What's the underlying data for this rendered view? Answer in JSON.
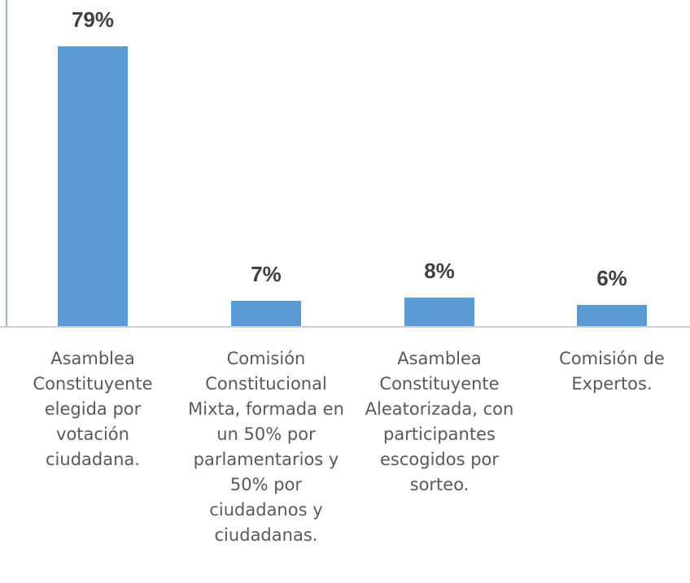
{
  "chart_data": {
    "type": "bar",
    "categories": [
      "Asamblea Constituyente elegida por votación ciudadana.",
      "Comisión Constitucional Mixta, formada en un 50% por parlamentarios y 50% por ciudadanos y ciudadanas.",
      "Asamblea Constituyente Aleatorizada, con participantes escogidos por sorteo.",
      "Comisión de Expertos."
    ],
    "values": [
      79,
      7,
      8,
      6
    ],
    "value_labels": [
      "79%",
      "7%",
      "8%",
      "6%"
    ],
    "color": "#5b9bd5"
  }
}
